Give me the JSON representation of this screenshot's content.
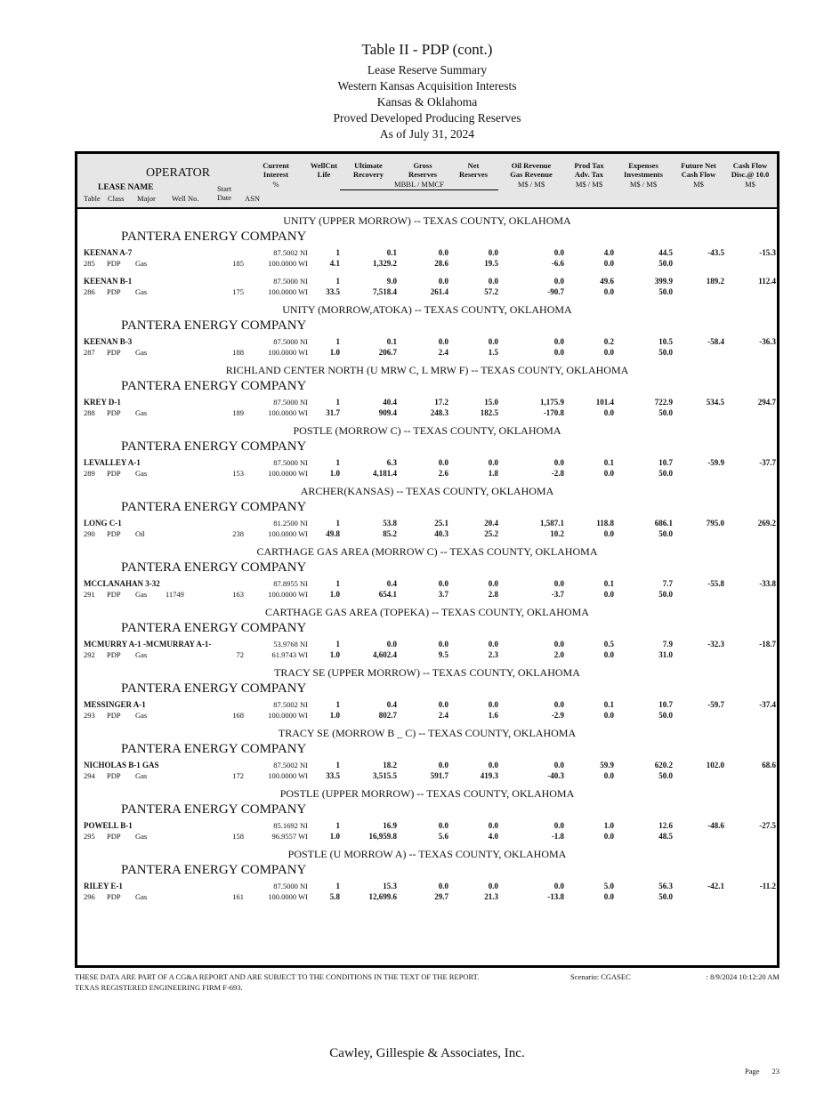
{
  "title": {
    "main": "Table II - PDP  (cont.)",
    "sub1": "Lease Reserve Summary",
    "sub2": "Western Kansas Acquisition Interests",
    "sub3": "Kansas & Oklahoma",
    "sub4": "Proved Developed Producing Reserves",
    "sub5": "As of July 31, 2024"
  },
  "header_left": {
    "operator_label": "OPERATOR",
    "lease_name_label": "LEASE NAME",
    "sub_labels": [
      "Table",
      "Class",
      "Major",
      "Well No.",
      "Start",
      "Date",
      "ASN"
    ]
  },
  "table": {
    "column_keys": [
      "interest",
      "wellcnt",
      "ult",
      "gross",
      "net",
      "oilgas",
      "prodtax",
      "expenses",
      "future",
      "cashflow"
    ],
    "columns": [
      {
        "l1": "Current",
        "l2": "Interest"
      },
      {
        "l1": "WellCnt",
        "l2": "Life"
      },
      {
        "l1": "Ultimate",
        "l2": "Recovery"
      },
      {
        "l1": "Gross",
        "l2": "Reserves"
      },
      {
        "l1": "Net",
        "l2": "Reserves"
      },
      {
        "l1": "Oil Revenue",
        "l2": "Gas Revenue"
      },
      {
        "l1": "Prod Tax",
        "l2": "Adv. Tax"
      },
      {
        "l1": "Expenses",
        "l2": "Investments"
      },
      {
        "l1": "Future Net",
        "l2": "Cash Flow"
      },
      {
        "l1": "Cash Flow",
        "l2": "Disc.@ 10.0"
      }
    ],
    "units": {
      "pct": "%",
      "mbbl": "MBBL / MMCF",
      "ms_ms_1": "M$ / M$",
      "ms_ms_2": "M$ / M$",
      "ms_ms_3": "M$ / M$",
      "ms_1": "M$",
      "ms_2": "M$"
    }
  },
  "sections": [
    {
      "title": "UNITY (UPPER MORROW) --  TEXAS COUNTY, OKLAHOMA",
      "operator": "PANTERA ENERGY COMPANY",
      "leases": [
        {
          "name": "KEENAN A-7",
          "row1": {
            "interest": "87.5002 NI",
            "wellcnt": "1",
            "ult": "0.1",
            "gross": "0.0",
            "net": "0.0",
            "oilgas": "0.0",
            "prodtax": "4.0",
            "expenses": "44.5",
            "future": "-43.5",
            "cashflow": "-15.3"
          },
          "row2": {
            "table": "285",
            "class": "PDP",
            "major": "Gas",
            "well_no": "",
            "asn": "185",
            "interest": "100.0000 WI",
            "wellcnt": "4.1",
            "ult": "1,329.2",
            "gross": "28.6",
            "net": "19.5",
            "oilgas": "-6.6",
            "prodtax": "0.0",
            "expenses": "50.0"
          }
        },
        {
          "name": "KEENAN B-1",
          "row1": {
            "interest": "87.5000 NI",
            "wellcnt": "1",
            "ult": "9.0",
            "gross": "0.0",
            "net": "0.0",
            "oilgas": "0.0",
            "prodtax": "49.6",
            "expenses": "399.9",
            "future": "189.2",
            "cashflow": "112.4"
          },
          "row2": {
            "table": "286",
            "class": "PDP",
            "major": "Gas",
            "well_no": "",
            "asn": "175",
            "interest": "100.0000 WI",
            "wellcnt": "33.5",
            "ult": "7,518.4",
            "gross": "261.4",
            "net": "57.2",
            "oilgas": "-90.7",
            "prodtax": "0.0",
            "expenses": "50.0"
          }
        }
      ]
    },
    {
      "title": "UNITY (MORROW,ATOKA) --  TEXAS COUNTY, OKLAHOMA",
      "operator": "PANTERA ENERGY COMPANY",
      "leases": [
        {
          "name": "KEENAN B-3",
          "row1": {
            "interest": "87.5000 NI",
            "wellcnt": "1",
            "ult": "0.1",
            "gross": "0.0",
            "net": "0.0",
            "oilgas": "0.0",
            "prodtax": "0.2",
            "expenses": "10.5",
            "future": "-58.4",
            "cashflow": "-36.3"
          },
          "row2": {
            "table": "287",
            "class": "PDP",
            "major": "Gas",
            "well_no": "",
            "asn": "188",
            "interest": "100.0000 WI",
            "wellcnt": "1.0",
            "ult": "206.7",
            "gross": "2.4",
            "net": "1.5",
            "oilgas": "0.0",
            "prodtax": "0.0",
            "expenses": "50.0"
          }
        }
      ]
    },
    {
      "title": "RICHLAND CENTER NORTH (U MRW C, L MRW F) --  TEXAS COUNTY, OKLAHOMA",
      "operator": "PANTERA ENERGY COMPANY",
      "leases": [
        {
          "name": "KREY D-1",
          "row1": {
            "interest": "87.5000 NI",
            "wellcnt": "1",
            "ult": "40.4",
            "gross": "17.2",
            "net": "15.0",
            "oilgas": "1,175.9",
            "prodtax": "101.4",
            "expenses": "722.9",
            "future": "534.5",
            "cashflow": "294.7"
          },
          "row2": {
            "table": "288",
            "class": "PDP",
            "major": "Gas",
            "well_no": "",
            "asn": "189",
            "interest": "100.0000 WI",
            "wellcnt": "31.7",
            "ult": "909.4",
            "gross": "248.3",
            "net": "182.5",
            "oilgas": "-170.8",
            "prodtax": "0.0",
            "expenses": "50.0"
          }
        }
      ]
    },
    {
      "title": "POSTLE (MORROW C) --  TEXAS COUNTY, OKLAHOMA",
      "operator": "PANTERA ENERGY COMPANY",
      "leases": [
        {
          "name": "LEVALLEY A-1",
          "row1": {
            "interest": "87.5000 NI",
            "wellcnt": "1",
            "ult": "6.3",
            "gross": "0.0",
            "net": "0.0",
            "oilgas": "0.0",
            "prodtax": "0.1",
            "expenses": "10.7",
            "future": "-59.9",
            "cashflow": "-37.7"
          },
          "row2": {
            "table": "289",
            "class": "PDP",
            "major": "Gas",
            "well_no": "",
            "asn": "153",
            "interest": "100.0000 WI",
            "wellcnt": "1.0",
            "ult": "4,181.4",
            "gross": "2.6",
            "net": "1.8",
            "oilgas": "-2.8",
            "prodtax": "0.0",
            "expenses": "50.0"
          }
        }
      ]
    },
    {
      "title": "ARCHER(KANSAS) --  TEXAS COUNTY, OKLAHOMA",
      "operator": "PANTERA ENERGY COMPANY",
      "leases": [
        {
          "name": "LONG C-1",
          "row1": {
            "interest": "81.2500 NI",
            "wellcnt": "1",
            "ult": "53.8",
            "gross": "25.1",
            "net": "20.4",
            "oilgas": "1,587.1",
            "prodtax": "118.8",
            "expenses": "686.1",
            "future": "795.0",
            "cashflow": "269.2"
          },
          "row2": {
            "table": "290",
            "class": "PDP",
            "major": "Oil",
            "well_no": "",
            "asn": "238",
            "interest": "100.0000 WI",
            "wellcnt": "49.8",
            "ult": "85.2",
            "gross": "40.3",
            "net": "25.2",
            "oilgas": "10.2",
            "prodtax": "0.0",
            "expenses": "50.0"
          }
        }
      ]
    },
    {
      "title": "CARTHAGE GAS AREA (MORROW C) --  TEXAS COUNTY, OKLAHOMA",
      "operator": "PANTERA ENERGY COMPANY",
      "leases": [
        {
          "name": "MCCLANAHAN 3-32",
          "row1": {
            "interest": "87.8955 NI",
            "wellcnt": "1",
            "ult": "0.4",
            "gross": "0.0",
            "net": "0.0",
            "oilgas": "0.0",
            "prodtax": "0.1",
            "expenses": "7.7",
            "future": "-55.8",
            "cashflow": "-33.8"
          },
          "row2": {
            "table": "291",
            "class": "PDP",
            "major": "Gas",
            "well_no": "11749",
            "asn": "163",
            "interest": "100.0000 WI",
            "wellcnt": "1.0",
            "ult": "654.1",
            "gross": "3.7",
            "net": "2.8",
            "oilgas": "-3.7",
            "prodtax": "0.0",
            "expenses": "50.0"
          }
        }
      ]
    },
    {
      "title": "CARTHAGE GAS AREA (TOPEKA) --  TEXAS COUNTY, OKLAHOMA",
      "operator": "PANTERA ENERGY COMPANY",
      "leases": [
        {
          "name": "MCMURRY A-1 -MCMURRAY A-1-",
          "row1": {
            "interest": "53.9768 NI",
            "wellcnt": "1",
            "ult": "0.0",
            "gross": "0.0",
            "net": "0.0",
            "oilgas": "0.0",
            "prodtax": "0.5",
            "expenses": "7.9",
            "future": "-32.3",
            "cashflow": "-18.7"
          },
          "row2": {
            "table": "292",
            "class": "PDP",
            "major": "Gas",
            "well_no": "",
            "asn": "72",
            "interest": "61.9743 WI",
            "wellcnt": "1.0",
            "ult": "4,602.4",
            "gross": "9.5",
            "net": "2.3",
            "oilgas": "2.0",
            "prodtax": "0.0",
            "expenses": "31.0"
          }
        }
      ]
    },
    {
      "title": "TRACY SE (UPPER MORROW) --  TEXAS COUNTY, OKLAHOMA",
      "operator": "PANTERA ENERGY COMPANY",
      "leases": [
        {
          "name": "MESSINGER A-1",
          "row1": {
            "interest": "87.5002 NI",
            "wellcnt": "1",
            "ult": "0.4",
            "gross": "0.0",
            "net": "0.0",
            "oilgas": "0.0",
            "prodtax": "0.1",
            "expenses": "10.7",
            "future": "-59.7",
            "cashflow": "-37.4"
          },
          "row2": {
            "table": "293",
            "class": "PDP",
            "major": "Gas",
            "well_no": "",
            "asn": "168",
            "interest": "100.0000 WI",
            "wellcnt": "1.0",
            "ult": "802.7",
            "gross": "2.4",
            "net": "1.6",
            "oilgas": "-2.9",
            "prodtax": "0.0",
            "expenses": "50.0"
          }
        }
      ]
    },
    {
      "title": "TRACY SE (MORROW B _ C) --  TEXAS COUNTY, OKLAHOMA",
      "operator": "PANTERA ENERGY COMPANY",
      "leases": [
        {
          "name": "NICHOLAS B-1 GAS",
          "row1": {
            "interest": "87.5002 NI",
            "wellcnt": "1",
            "ult": "18.2",
            "gross": "0.0",
            "net": "0.0",
            "oilgas": "0.0",
            "prodtax": "59.9",
            "expenses": "620.2",
            "future": "102.0",
            "cashflow": "68.6"
          },
          "row2": {
            "table": "294",
            "class": "PDP",
            "major": "Gas",
            "well_no": "",
            "asn": "172",
            "interest": "100.0000 WI",
            "wellcnt": "33.5",
            "ult": "3,515.5",
            "gross": "591.7",
            "net": "419.3",
            "oilgas": "-40.3",
            "prodtax": "0.0",
            "expenses": "50.0"
          }
        }
      ]
    },
    {
      "title": "POSTLE (UPPER MORROW) --  TEXAS COUNTY, OKLAHOMA",
      "operator": "PANTERA ENERGY COMPANY",
      "leases": [
        {
          "name": "POWELL B-1",
          "row1": {
            "interest": "85.1692 NI",
            "wellcnt": "1",
            "ult": "16.9",
            "gross": "0.0",
            "net": "0.0",
            "oilgas": "0.0",
            "prodtax": "1.0",
            "expenses": "12.6",
            "future": "-48.6",
            "cashflow": "-27.5"
          },
          "row2": {
            "table": "295",
            "class": "PDP",
            "major": "Gas",
            "well_no": "",
            "asn": "158",
            "interest": "96.9557 WI",
            "wellcnt": "1.0",
            "ult": "16,959.8",
            "gross": "5.6",
            "net": "4.0",
            "oilgas": "-1.8",
            "prodtax": "0.0",
            "expenses": "48.5"
          }
        }
      ]
    },
    {
      "title": "POSTLE (U MORROW A) --  TEXAS COUNTY, OKLAHOMA",
      "operator": "PANTERA ENERGY COMPANY",
      "leases": [
        {
          "name": "RILEY E-1",
          "row1": {
            "interest": "87.5000 NI",
            "wellcnt": "1",
            "ult": "15.3",
            "gross": "0.0",
            "net": "0.0",
            "oilgas": "0.0",
            "prodtax": "5.0",
            "expenses": "56.3",
            "future": "-42.1",
            "cashflow": "-11.2"
          },
          "row2": {
            "table": "296",
            "class": "PDP",
            "major": "Gas",
            "well_no": "",
            "asn": "161",
            "interest": "100.0000 WI",
            "wellcnt": "5.8",
            "ult": "12,699.6",
            "gross": "29.7",
            "net": "21.3",
            "oilgas": "-13.8",
            "prodtax": "0.0",
            "expenses": "50.0"
          }
        }
      ]
    }
  ],
  "footer": {
    "line1": "THESE DATA ARE PART OF A CG&A REPORT AND ARE SUBJECT TO THE CONDITIONS IN THE TEXT OF THE REPORT.",
    "line2": "TEXAS REGISTERED ENGINEERING FIRM F-693.",
    "scenario": "Scenario: CGASEC",
    "datetime": ": 8/9/2024  10:12:20 AM",
    "company": "Cawley, Gillespie & Associates, Inc.",
    "page_label": "Page",
    "page_number": "23"
  }
}
